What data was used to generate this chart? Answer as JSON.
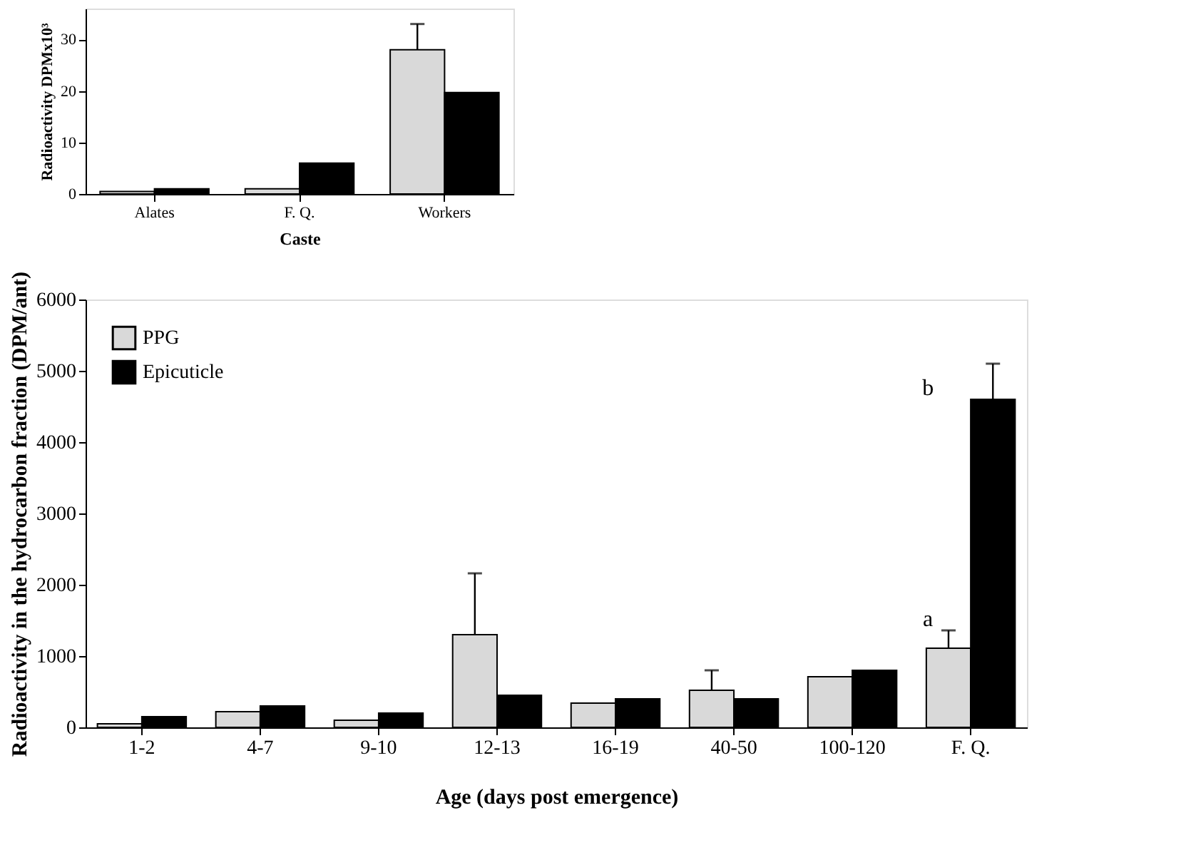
{
  "chart_data": [
    {
      "type": "bar",
      "xlabel": "Age (days post emergence)",
      "ylabel": "Radioactivity in the hydrocarbon fraction (DPM/ant)",
      "categories": [
        "1-2",
        "4-7",
        "9-10",
        "12-13",
        "16-19",
        "40-50",
        "100-120",
        "F. Q."
      ],
      "series": [
        {
          "name": "PPG",
          "color": "#d9d9d9",
          "values": [
            50,
            220,
            100,
            1300,
            340,
            520,
            710,
            1110
          ],
          "errors": [
            null,
            null,
            null,
            [
              1300,
              2160
            ],
            null,
            [
              520,
              800
            ],
            null,
            [
              1110,
              1360
            ]
          ]
        },
        {
          "name": "Epicuticle",
          "color": "#000000",
          "values": [
            150,
            300,
            200,
            450,
            400,
            400,
            800,
            4600
          ],
          "errors": [
            null,
            null,
            null,
            null,
            null,
            null,
            null,
            [
              4600,
              5100
            ]
          ]
        }
      ],
      "ylim": [
        0,
        6000
      ],
      "yticks": [
        0,
        1000,
        2000,
        3000,
        4000,
        5000,
        6000
      ],
      "legend": "top left",
      "annotations": [
        {
          "text": "a",
          "x": "F. Q.",
          "y": 1360
        },
        {
          "text": "b",
          "x": "F. Q.",
          "y": 4600
        }
      ]
    },
    {
      "type": "bar",
      "xlabel": "Caste",
      "ylabel": "Radioactivity  DPMx10³",
      "categories": [
        "Alates",
        "F. Q.",
        "Workers"
      ],
      "series": [
        {
          "color": "#d9d9d9",
          "values": [
            0.5,
            1,
            28
          ],
          "errors": [
            null,
            null,
            [
              28,
              33
            ]
          ]
        },
        {
          "color": "#000000",
          "values": [
            1,
            6,
            19.7
          ]
        }
      ],
      "ylim": [
        0,
        36
      ],
      "yticks": [
        0,
        10,
        20,
        30
      ],
      "legend": false
    }
  ]
}
